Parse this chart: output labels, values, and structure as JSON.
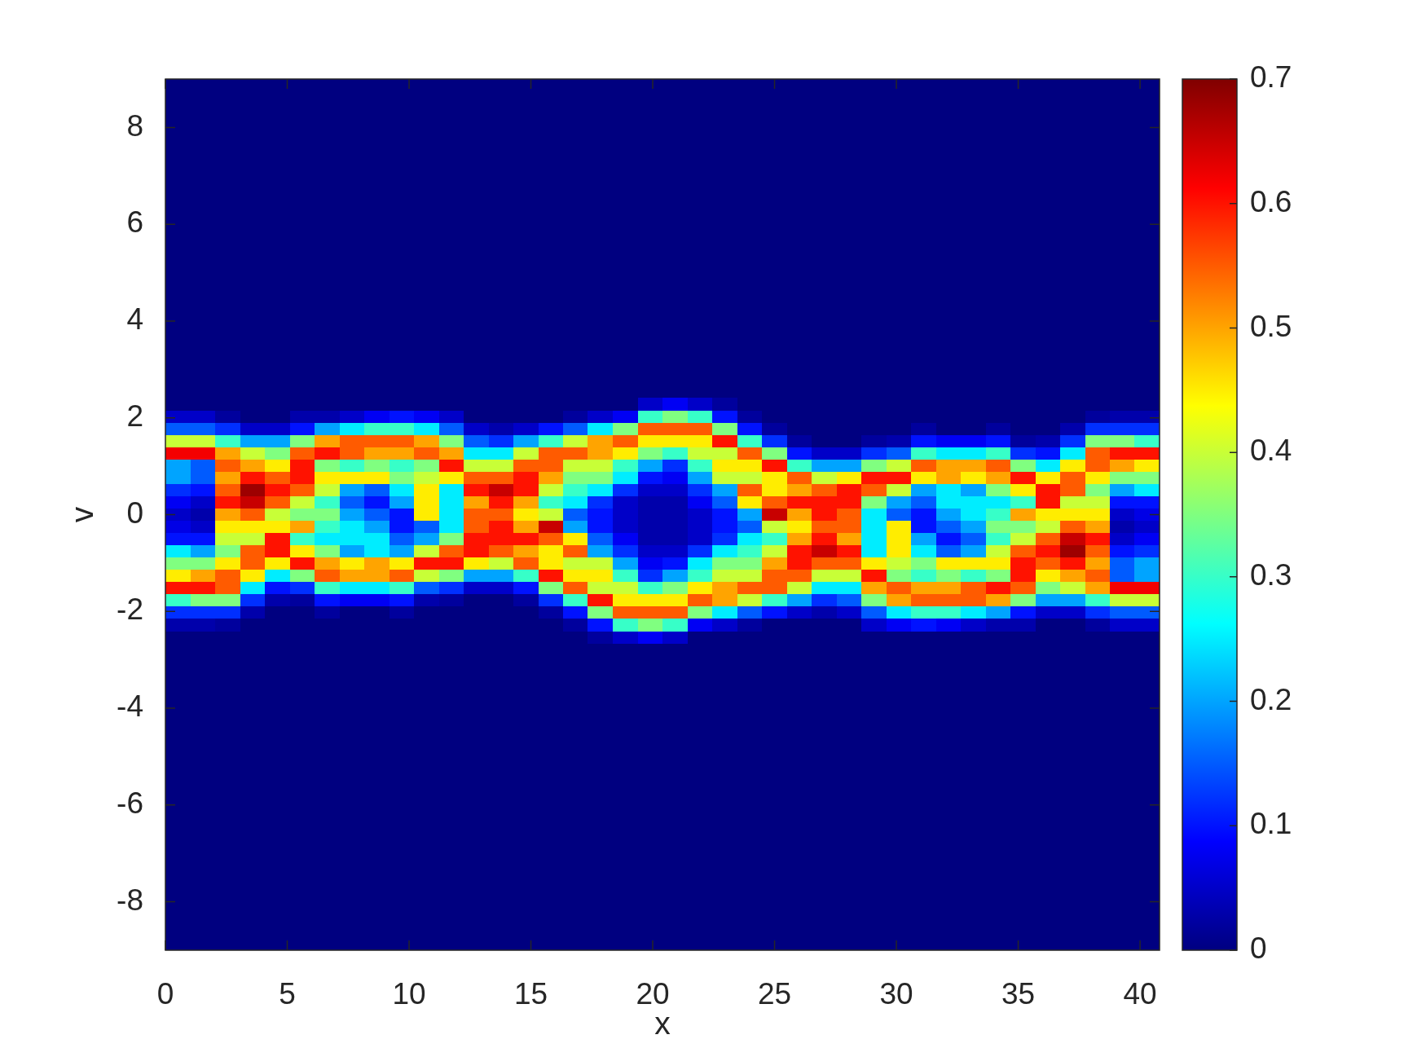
{
  "chart_data": {
    "type": "heatmap",
    "xlabel": "x",
    "ylabel": "v",
    "xlim": [
      0,
      40.8
    ],
    "ylim": [
      -9,
      9
    ],
    "xticks": [
      0,
      5,
      10,
      15,
      20,
      25,
      30,
      35,
      40
    ],
    "yticks": [
      -8,
      -6,
      -4,
      -2,
      0,
      2,
      4,
      6,
      8
    ],
    "clim": [
      0,
      0.7
    ],
    "cticks": [
      0,
      0.1,
      0.2,
      0.3,
      0.4,
      0.5,
      0.6,
      0.7
    ],
    "cells": [
      [
        0,
        0,
        0,
        0,
        0,
        0,
        0,
        0,
        0,
        0,
        0,
        0,
        0,
        0,
        0,
        0,
        0,
        0,
        0,
        0,
        0,
        0,
        0,
        0,
        0,
        0,
        0,
        0,
        0,
        0,
        0,
        0,
        0,
        0,
        0,
        0,
        0,
        0,
        0,
        0
      ],
      [
        0,
        0,
        0,
        0,
        0,
        0,
        0,
        0,
        0,
        0,
        0,
        0,
        0,
        0,
        0,
        0,
        0,
        0,
        0,
        0,
        0,
        0,
        0,
        0,
        0,
        0,
        0,
        0,
        0,
        0,
        0,
        0,
        0,
        0,
        0,
        0,
        0,
        0,
        0,
        0
      ],
      [
        0,
        0,
        0,
        0,
        0,
        0,
        0,
        0,
        0,
        0,
        0,
        0,
        0,
        0,
        0,
        0,
        0,
        0,
        0,
        0,
        0,
        0,
        0,
        0,
        0,
        0,
        0,
        0,
        0,
        0,
        0,
        0,
        0,
        0,
        0,
        0,
        0,
        0,
        0,
        0
      ],
      [
        0,
        0,
        0,
        0,
        0,
        0,
        0,
        0,
        0,
        0,
        0,
        0,
        0,
        0,
        0,
        0,
        0,
        0,
        0,
        0,
        0,
        0,
        0,
        0,
        0,
        0,
        0,
        0,
        0,
        0,
        0,
        0,
        0,
        0,
        0,
        0,
        0,
        0,
        0,
        0
      ],
      [
        0,
        0,
        0,
        0,
        0,
        0,
        0,
        0,
        0,
        0,
        0,
        0,
        0,
        0,
        0,
        0,
        0,
        0,
        0,
        0,
        0,
        0,
        0,
        0,
        0,
        0,
        0,
        0,
        0,
        0,
        0,
        0,
        0,
        0,
        0,
        0,
        0,
        0,
        0,
        0
      ],
      [
        0,
        0,
        0,
        0,
        0,
        0,
        0,
        0,
        0,
        0,
        0,
        0,
        0,
        0,
        0,
        0,
        0,
        0,
        0,
        0,
        0,
        0,
        0,
        0,
        0,
        0,
        0,
        0,
        0,
        0,
        0,
        0,
        0,
        0,
        0,
        0,
        0,
        0,
        0,
        0
      ],
      [
        0,
        0,
        0,
        0,
        0,
        0,
        0,
        0,
        0,
        0,
        0,
        0,
        0,
        0,
        0,
        0,
        0,
        0,
        0,
        0,
        0,
        0,
        0,
        0,
        0,
        0,
        0,
        0,
        0,
        0,
        0,
        0,
        0,
        0,
        0,
        0,
        0,
        0,
        0,
        0
      ],
      [
        0,
        0,
        0,
        0,
        0,
        0,
        0,
        0,
        0,
        0,
        0,
        0,
        0,
        0,
        0,
        0,
        0,
        0,
        0,
        0,
        0,
        0,
        0,
        0,
        0,
        0,
        0,
        0,
        0,
        0,
        0,
        0,
        0,
        0,
        0,
        0,
        0,
        0,
        0,
        0
      ],
      [
        0,
        0,
        0,
        0,
        0,
        0,
        0,
        0,
        0,
        0,
        0,
        0,
        0,
        0,
        0,
        0,
        0,
        0,
        0,
        0,
        0,
        0,
        0,
        0,
        0,
        0,
        0,
        0,
        0,
        0,
        0,
        0,
        0,
        0,
        0,
        0,
        0,
        0,
        0,
        0
      ],
      [
        0,
        0,
        0,
        0,
        0,
        0,
        0,
        0,
        0,
        0,
        0,
        0,
        0,
        0,
        0,
        0,
        0,
        0,
        0,
        0,
        0,
        0,
        0,
        0,
        0,
        0,
        0,
        0,
        0,
        0,
        0,
        0,
        0,
        0,
        0,
        0,
        0,
        0,
        0,
        0
      ],
      [
        0,
        0,
        0,
        0,
        0,
        0,
        0,
        0,
        0,
        0,
        0,
        0,
        0,
        0,
        0,
        0,
        0,
        0,
        0,
        0,
        0,
        0,
        0,
        0,
        0,
        0,
        0,
        0,
        0,
        0,
        0,
        0,
        0,
        0,
        0,
        0,
        0,
        0,
        0,
        0
      ],
      [
        0,
        0,
        0,
        0,
        0,
        0,
        0,
        0,
        0,
        0,
        0,
        0,
        0,
        0,
        0,
        0,
        0,
        0,
        0,
        0,
        0,
        0,
        0,
        0,
        0,
        0,
        0,
        0,
        0,
        0,
        0,
        0,
        0,
        0,
        0,
        0,
        0,
        0,
        0,
        0
      ],
      [
        0,
        0,
        0,
        0,
        0,
        0,
        0,
        0,
        0,
        0,
        0,
        0,
        0,
        0,
        0,
        0,
        0,
        0,
        0,
        0,
        0,
        0,
        0,
        0,
        0,
        0,
        0,
        0,
        0,
        0,
        0,
        0,
        0,
        0,
        0,
        0,
        0,
        0,
        0,
        0
      ],
      [
        0,
        0,
        0,
        0,
        0,
        0,
        0,
        0,
        0,
        0,
        0,
        0,
        0,
        0,
        0,
        0,
        0,
        0,
        0,
        0,
        0,
        0,
        0,
        0,
        0,
        0,
        0,
        0,
        0,
        0,
        0,
        0,
        0,
        0,
        0,
        0,
        0,
        0,
        0,
        0
      ],
      [
        0,
        0,
        0,
        0,
        0,
        0,
        0,
        0,
        0,
        0,
        0,
        0,
        0,
        0,
        0,
        0,
        0,
        0,
        0,
        0,
        0,
        0,
        0,
        0,
        0,
        0,
        0,
        0,
        0,
        0,
        0,
        0,
        0,
        0,
        0,
        0,
        0,
        0,
        0,
        0
      ],
      [
        0,
        0,
        0,
        0,
        0,
        0,
        0,
        0,
        0,
        0,
        0,
        0,
        0,
        0,
        0,
        0,
        0,
        0,
        0,
        0,
        0,
        0,
        0,
        0,
        0,
        0,
        0,
        0,
        0,
        0,
        0,
        0,
        0,
        0,
        0,
        0,
        0,
        0,
        0,
        0
      ],
      [
        0,
        0,
        0,
        0,
        0,
        0,
        0,
        0,
        0,
        0,
        0,
        0,
        0,
        0,
        0,
        0,
        0,
        0,
        0,
        0,
        0,
        0,
        0,
        0,
        0,
        0,
        0,
        0,
        0,
        0,
        0,
        0,
        0,
        0,
        0,
        0,
        0,
        0,
        0,
        0
      ],
      [
        0,
        0,
        0,
        0,
        0,
        0,
        0,
        0,
        0,
        0,
        0,
        0,
        0,
        0,
        0,
        0,
        0,
        0,
        0,
        0,
        0,
        0,
        0,
        0,
        0,
        0,
        0,
        0,
        0,
        0,
        0,
        0,
        0,
        0,
        0,
        0,
        0,
        0,
        0,
        0
      ],
      [
        0,
        0,
        0,
        0,
        0,
        0,
        0,
        0,
        0,
        0,
        0,
        0,
        0,
        0,
        0,
        0,
        0,
        0,
        0,
        0,
        0,
        0,
        0,
        0,
        0,
        0,
        0,
        0,
        0,
        0,
        0,
        0,
        0,
        0,
        0,
        0,
        0,
        0,
        0,
        0
      ],
      [
        0,
        0,
        0,
        0,
        0,
        0,
        0,
        0,
        0,
        0,
        0,
        0,
        0,
        0,
        0,
        0,
        0,
        0,
        0,
        0,
        0,
        0,
        0,
        0,
        0,
        0,
        0,
        0,
        0,
        0,
        0,
        0,
        0,
        0,
        0,
        0,
        0,
        0,
        0,
        0
      ],
      [
        0,
        0,
        0,
        0,
        0,
        0,
        0,
        0,
        0,
        0,
        0,
        0,
        0,
        0,
        0,
        0,
        0,
        0,
        0,
        0,
        0,
        0,
        0,
        0,
        0,
        0,
        0,
        0,
        0,
        0,
        0,
        0,
        0,
        0,
        0,
        0,
        0,
        0,
        0,
        0
      ],
      [
        0,
        0,
        0,
        0,
        0,
        0,
        0,
        0,
        0,
        0,
        0,
        0,
        0,
        0,
        0,
        0,
        0,
        0,
        0,
        0,
        0,
        0,
        0,
        0,
        0,
        0,
        0,
        0,
        0,
        0,
        0,
        0,
        0,
        0,
        0,
        0,
        0,
        0,
        0,
        0
      ],
      [
        0,
        0,
        0,
        0,
        0,
        0,
        0,
        0,
        0,
        0,
        0,
        0,
        0,
        0,
        0,
        0,
        0,
        0,
        0,
        0,
        0,
        0,
        0,
        0,
        0,
        0,
        0,
        0,
        0,
        0,
        0,
        0,
        0,
        0,
        0,
        0,
        0,
        0,
        0,
        0
      ],
      [
        0,
        0,
        0,
        0,
        0,
        0,
        0,
        0,
        0,
        0,
        0,
        0,
        0,
        0,
        0,
        0,
        0,
        0,
        0,
        0,
        0,
        0,
        0,
        0,
        0,
        0,
        0,
        0,
        0,
        0,
        0,
        0,
        0,
        0,
        0,
        0,
        0,
        0,
        0,
        0
      ],
      [
        0,
        0,
        0,
        0,
        0,
        0,
        0,
        0,
        0,
        0,
        0,
        0,
        0,
        0,
        0,
        0,
        0,
        0,
        0,
        0,
        0,
        0,
        0,
        0,
        0,
        0,
        0,
        0,
        0,
        0,
        0,
        0,
        0,
        0,
        0,
        0,
        0,
        0,
        0,
        0
      ],
      [
        0,
        0,
        0,
        0,
        0,
        0,
        0,
        0,
        0,
        0,
        0,
        0,
        0,
        0,
        0,
        0,
        0,
        0,
        0,
        0,
        0,
        0,
        0,
        0,
        0,
        0,
        0,
        0,
        0,
        0,
        0,
        0,
        0,
        0,
        0,
        0,
        0,
        0,
        0,
        0
      ],
      [
        0,
        0,
        0,
        0,
        0,
        0,
        0,
        0,
        0,
        0,
        0,
        0,
        0,
        0,
        0,
        0,
        0,
        0,
        0,
        0.05,
        0.08,
        0.05,
        0.02,
        0,
        0,
        0,
        0,
        0,
        0,
        0,
        0,
        0,
        0,
        0,
        0,
        0,
        0,
        0,
        0,
        0
      ],
      [
        0.05,
        0.05,
        0.02,
        0,
        0,
        0.03,
        0.03,
        0.05,
        0.08,
        0.1,
        0.08,
        0.05,
        0,
        0,
        0,
        0,
        0.02,
        0.05,
        0.08,
        0.3,
        0.35,
        0.3,
        0.1,
        0.02,
        0,
        0,
        0,
        0,
        0,
        0,
        0,
        0,
        0,
        0,
        0,
        0,
        0,
        0.02,
        0.03,
        0.03
      ],
      [
        0.15,
        0.15,
        0.12,
        0.05,
        0.05,
        0.1,
        0.2,
        0.25,
        0.3,
        0.3,
        0.25,
        0.15,
        0.05,
        0.03,
        0.05,
        0.1,
        0.15,
        0.25,
        0.35,
        0.55,
        0.55,
        0.55,
        0.35,
        0.1,
        0.02,
        0,
        0,
        0,
        0,
        0,
        0.02,
        0,
        0,
        0.02,
        0,
        0,
        0.03,
        0.12,
        0.12,
        0.12
      ],
      [
        0.4,
        0.4,
        0.3,
        0.2,
        0.2,
        0.35,
        0.5,
        0.55,
        0.55,
        0.55,
        0.5,
        0.35,
        0.15,
        0.12,
        0.2,
        0.3,
        0.4,
        0.5,
        0.55,
        0.45,
        0.45,
        0.45,
        0.6,
        0.3,
        0.12,
        0.02,
        0,
        0,
        0.02,
        0.03,
        0.1,
        0.08,
        0.08,
        0.1,
        0.02,
        0.03,
        0.12,
        0.35,
        0.35,
        0.3
      ],
      [
        0.62,
        0.62,
        0.5,
        0.4,
        0.35,
        0.55,
        0.6,
        0.55,
        0.5,
        0.5,
        0.55,
        0.5,
        0.25,
        0.25,
        0.4,
        0.55,
        0.55,
        0.5,
        0.45,
        0.35,
        0.3,
        0.4,
        0.4,
        0.55,
        0.35,
        0.1,
        0.05,
        0.05,
        0.12,
        0.15,
        0.3,
        0.25,
        0.25,
        0.3,
        0.12,
        0.1,
        0.25,
        0.55,
        0.6,
        0.6
      ],
      [
        0.2,
        0.15,
        0.55,
        0.5,
        0.45,
        0.6,
        0.35,
        0.3,
        0.35,
        0.3,
        0.35,
        0.6,
        0.4,
        0.4,
        0.55,
        0.55,
        0.4,
        0.4,
        0.3,
        0.2,
        0.12,
        0.3,
        0.45,
        0.45,
        0.6,
        0.3,
        0.2,
        0.2,
        0.35,
        0.4,
        0.55,
        0.5,
        0.5,
        0.55,
        0.35,
        0.25,
        0.45,
        0.55,
        0.5,
        0.45
      ],
      [
        0.2,
        0.15,
        0.5,
        0.6,
        0.55,
        0.6,
        0.45,
        0.45,
        0.45,
        0.35,
        0.4,
        0.45,
        0.55,
        0.55,
        0.6,
        0.5,
        0.35,
        0.35,
        0.25,
        0.1,
        0.08,
        0.2,
        0.4,
        0.4,
        0.45,
        0.55,
        0.4,
        0.45,
        0.6,
        0.6,
        0.45,
        0.5,
        0.45,
        0.5,
        0.6,
        0.45,
        0.55,
        0.45,
        0.35,
        0.35
      ],
      [
        0.12,
        0.1,
        0.55,
        0.68,
        0.6,
        0.55,
        0.4,
        0.2,
        0.15,
        0.25,
        0.45,
        0.25,
        0.6,
        0.65,
        0.6,
        0.4,
        0.3,
        0.25,
        0.12,
        0.05,
        0.05,
        0.12,
        0.2,
        0.55,
        0.45,
        0.5,
        0.55,
        0.6,
        0.55,
        0.4,
        0.2,
        0.25,
        0.2,
        0.35,
        0.45,
        0.6,
        0.55,
        0.35,
        0.2,
        0.25
      ],
      [
        0.08,
        0.05,
        0.6,
        0.65,
        0.55,
        0.4,
        0.3,
        0.15,
        0.1,
        0.2,
        0.45,
        0.25,
        0.5,
        0.6,
        0.5,
        0.3,
        0.25,
        0.12,
        0.05,
        0.03,
        0.03,
        0.08,
        0.15,
        0.45,
        0.55,
        0.6,
        0.6,
        0.6,
        0.35,
        0.2,
        0.15,
        0.25,
        0.25,
        0.25,
        0.3,
        0.6,
        0.4,
        0.4,
        0.1,
        0.1
      ],
      [
        0.05,
        0.03,
        0.5,
        0.55,
        0.4,
        0.35,
        0.35,
        0.2,
        0.15,
        0.1,
        0.45,
        0.25,
        0.55,
        0.55,
        0.45,
        0.4,
        0.15,
        0.1,
        0.05,
        0.03,
        0.03,
        0.05,
        0.1,
        0.2,
        0.65,
        0.5,
        0.6,
        0.55,
        0.25,
        0.15,
        0.1,
        0.2,
        0.25,
        0.3,
        0.5,
        0.45,
        0.45,
        0.45,
        0.05,
        0.07
      ],
      [
        0.07,
        0.05,
        0.45,
        0.45,
        0.45,
        0.5,
        0.3,
        0.25,
        0.2,
        0.1,
        0.15,
        0.25,
        0.55,
        0.6,
        0.5,
        0.65,
        0.2,
        0.1,
        0.05,
        0.03,
        0.03,
        0.05,
        0.1,
        0.15,
        0.4,
        0.45,
        0.55,
        0.55,
        0.25,
        0.45,
        0.1,
        0.15,
        0.2,
        0.35,
        0.35,
        0.4,
        0.55,
        0.5,
        0.03,
        0.05
      ],
      [
        0.1,
        0.1,
        0.4,
        0.4,
        0.6,
        0.3,
        0.25,
        0.25,
        0.25,
        0.15,
        0.2,
        0.35,
        0.6,
        0.6,
        0.6,
        0.55,
        0.45,
        0.15,
        0.08,
        0.03,
        0.03,
        0.05,
        0.12,
        0.25,
        0.3,
        0.5,
        0.6,
        0.5,
        0.25,
        0.45,
        0.2,
        0.1,
        0.15,
        0.3,
        0.4,
        0.55,
        0.65,
        0.6,
        0.05,
        0.08
      ],
      [
        0.25,
        0.2,
        0.35,
        0.55,
        0.6,
        0.45,
        0.35,
        0.2,
        0.25,
        0.2,
        0.4,
        0.55,
        0.6,
        0.55,
        0.5,
        0.45,
        0.55,
        0.2,
        0.12,
        0.05,
        0.05,
        0.12,
        0.25,
        0.3,
        0.4,
        0.6,
        0.65,
        0.6,
        0.25,
        0.45,
        0.25,
        0.15,
        0.2,
        0.4,
        0.55,
        0.6,
        0.68,
        0.55,
        0.1,
        0.12
      ],
      [
        0.35,
        0.35,
        0.45,
        0.55,
        0.45,
        0.6,
        0.5,
        0.45,
        0.5,
        0.45,
        0.6,
        0.6,
        0.45,
        0.4,
        0.55,
        0.45,
        0.4,
        0.4,
        0.2,
        0.08,
        0.1,
        0.25,
        0.35,
        0.35,
        0.5,
        0.6,
        0.55,
        0.55,
        0.45,
        0.4,
        0.35,
        0.45,
        0.45,
        0.45,
        0.6,
        0.55,
        0.6,
        0.5,
        0.15,
        0.2
      ],
      [
        0.45,
        0.5,
        0.55,
        0.45,
        0.25,
        0.35,
        0.55,
        0.5,
        0.5,
        0.55,
        0.4,
        0.35,
        0.2,
        0.2,
        0.3,
        0.6,
        0.45,
        0.45,
        0.3,
        0.12,
        0.2,
        0.3,
        0.4,
        0.4,
        0.55,
        0.55,
        0.4,
        0.4,
        0.6,
        0.35,
        0.3,
        0.35,
        0.3,
        0.35,
        0.6,
        0.45,
        0.5,
        0.55,
        0.15,
        0.2
      ],
      [
        0.6,
        0.6,
        0.55,
        0.25,
        0.1,
        0.12,
        0.3,
        0.25,
        0.25,
        0.3,
        0.15,
        0.12,
        0.05,
        0.05,
        0.1,
        0.35,
        0.55,
        0.4,
        0.4,
        0.3,
        0.35,
        0.45,
        0.5,
        0.55,
        0.55,
        0.4,
        0.25,
        0.25,
        0.5,
        0.55,
        0.5,
        0.5,
        0.55,
        0.6,
        0.55,
        0.35,
        0.4,
        0.5,
        0.62,
        0.62
      ],
      [
        0.3,
        0.35,
        0.35,
        0.12,
        0.03,
        0.02,
        0.1,
        0.08,
        0.08,
        0.1,
        0.03,
        0.02,
        0,
        0,
        0.02,
        0.12,
        0.3,
        0.6,
        0.45,
        0.45,
        0.45,
        0.55,
        0.5,
        0.4,
        0.3,
        0.2,
        0.12,
        0.15,
        0.35,
        0.5,
        0.55,
        0.55,
        0.55,
        0.5,
        0.35,
        0.2,
        0.2,
        0.3,
        0.4,
        0.4
      ],
      [
        0.12,
        0.12,
        0.12,
        0.03,
        0,
        0,
        0.02,
        0,
        0,
        0.02,
        0,
        0,
        0,
        0,
        0,
        0.02,
        0.1,
        0.35,
        0.55,
        0.55,
        0.55,
        0.35,
        0.25,
        0.15,
        0.1,
        0.05,
        0.03,
        0.05,
        0.15,
        0.25,
        0.3,
        0.3,
        0.25,
        0.2,
        0.1,
        0.05,
        0.05,
        0.12,
        0.15,
        0.15
      ],
      [
        0.03,
        0.03,
        0.02,
        0,
        0,
        0,
        0,
        0,
        0,
        0,
        0,
        0,
        0,
        0,
        0,
        0,
        0.02,
        0.1,
        0.3,
        0.35,
        0.3,
        0.08,
        0.05,
        0.02,
        0,
        0,
        0,
        0,
        0.05,
        0.08,
        0.1,
        0.08,
        0.05,
        0.03,
        0.03,
        0,
        0,
        0.02,
        0.05,
        0.05
      ],
      [
        0,
        0,
        0,
        0,
        0,
        0,
        0,
        0,
        0,
        0,
        0,
        0,
        0,
        0,
        0,
        0,
        0,
        0.02,
        0.05,
        0.08,
        0.05,
        0,
        0,
        0,
        0,
        0,
        0,
        0,
        0,
        0,
        0,
        0,
        0,
        0,
        0,
        0,
        0,
        0,
        0,
        0
      ],
      [
        0,
        0,
        0,
        0,
        0,
        0,
        0,
        0,
        0,
        0,
        0,
        0,
        0,
        0,
        0,
        0,
        0,
        0,
        0,
        0,
        0,
        0,
        0,
        0,
        0,
        0,
        0,
        0,
        0,
        0,
        0,
        0,
        0,
        0,
        0,
        0,
        0,
        0,
        0,
        0
      ],
      [
        0,
        0,
        0,
        0,
        0,
        0,
        0,
        0,
        0,
        0,
        0,
        0,
        0,
        0,
        0,
        0,
        0,
        0,
        0,
        0,
        0,
        0,
        0,
        0,
        0,
        0,
        0,
        0,
        0,
        0,
        0,
        0,
        0,
        0,
        0,
        0,
        0,
        0,
        0,
        0
      ],
      [
        0,
        0,
        0,
        0,
        0,
        0,
        0,
        0,
        0,
        0,
        0,
        0,
        0,
        0,
        0,
        0,
        0,
        0,
        0,
        0,
        0,
        0,
        0,
        0,
        0,
        0,
        0,
        0,
        0,
        0,
        0,
        0,
        0,
        0,
        0,
        0,
        0,
        0,
        0,
        0
      ],
      [
        0,
        0,
        0,
        0,
        0,
        0,
        0,
        0,
        0,
        0,
        0,
        0,
        0,
        0,
        0,
        0,
        0,
        0,
        0,
        0,
        0,
        0,
        0,
        0,
        0,
        0,
        0,
        0,
        0,
        0,
        0,
        0,
        0,
        0,
        0,
        0,
        0,
        0,
        0,
        0
      ],
      [
        0,
        0,
        0,
        0,
        0,
        0,
        0,
        0,
        0,
        0,
        0,
        0,
        0,
        0,
        0,
        0,
        0,
        0,
        0,
        0,
        0,
        0,
        0,
        0,
        0,
        0,
        0,
        0,
        0,
        0,
        0,
        0,
        0,
        0,
        0,
        0,
        0,
        0,
        0,
        0
      ],
      [
        0,
        0,
        0,
        0,
        0,
        0,
        0,
        0,
        0,
        0,
        0,
        0,
        0,
        0,
        0,
        0,
        0,
        0,
        0,
        0,
        0,
        0,
        0,
        0,
        0,
        0,
        0,
        0,
        0,
        0,
        0,
        0,
        0,
        0,
        0,
        0,
        0,
        0,
        0,
        0
      ],
      [
        0,
        0,
        0,
        0,
        0,
        0,
        0,
        0,
        0,
        0,
        0,
        0,
        0,
        0,
        0,
        0,
        0,
        0,
        0,
        0,
        0,
        0,
        0,
        0,
        0,
        0,
        0,
        0,
        0,
        0,
        0,
        0,
        0,
        0,
        0,
        0,
        0,
        0,
        0,
        0
      ],
      [
        0,
        0,
        0,
        0,
        0,
        0,
        0,
        0,
        0,
        0,
        0,
        0,
        0,
        0,
        0,
        0,
        0,
        0,
        0,
        0,
        0,
        0,
        0,
        0,
        0,
        0,
        0,
        0,
        0,
        0,
        0,
        0,
        0,
        0,
        0,
        0,
        0,
        0,
        0,
        0
      ],
      [
        0,
        0,
        0,
        0,
        0,
        0,
        0,
        0,
        0,
        0,
        0,
        0,
        0,
        0,
        0,
        0,
        0,
        0,
        0,
        0,
        0,
        0,
        0,
        0,
        0,
        0,
        0,
        0,
        0,
        0,
        0,
        0,
        0,
        0,
        0,
        0,
        0,
        0,
        0,
        0
      ],
      [
        0,
        0,
        0,
        0,
        0,
        0,
        0,
        0,
        0,
        0,
        0,
        0,
        0,
        0,
        0,
        0,
        0,
        0,
        0,
        0,
        0,
        0,
        0,
        0,
        0,
        0,
        0,
        0,
        0,
        0,
        0,
        0,
        0,
        0,
        0,
        0,
        0,
        0,
        0,
        0
      ],
      [
        0,
        0,
        0,
        0,
        0,
        0,
        0,
        0,
        0,
        0,
        0,
        0,
        0,
        0,
        0,
        0,
        0,
        0,
        0,
        0,
        0,
        0,
        0,
        0,
        0,
        0,
        0,
        0,
        0,
        0,
        0,
        0,
        0,
        0,
        0,
        0,
        0,
        0,
        0,
        0
      ],
      [
        0,
        0,
        0,
        0,
        0,
        0,
        0,
        0,
        0,
        0,
        0,
        0,
        0,
        0,
        0,
        0,
        0,
        0,
        0,
        0,
        0,
        0,
        0,
        0,
        0,
        0,
        0,
        0,
        0,
        0,
        0,
        0,
        0,
        0,
        0,
        0,
        0,
        0,
        0,
        0
      ],
      [
        0,
        0,
        0,
        0,
        0,
        0,
        0,
        0,
        0,
        0,
        0,
        0,
        0,
        0,
        0,
        0,
        0,
        0,
        0,
        0,
        0,
        0,
        0,
        0,
        0,
        0,
        0,
        0,
        0,
        0,
        0,
        0,
        0,
        0,
        0,
        0,
        0,
        0,
        0,
        0
      ],
      [
        0,
        0,
        0,
        0,
        0,
        0,
        0,
        0,
        0,
        0,
        0,
        0,
        0,
        0,
        0,
        0,
        0,
        0,
        0,
        0,
        0,
        0,
        0,
        0,
        0,
        0,
        0,
        0,
        0,
        0,
        0,
        0,
        0,
        0,
        0,
        0,
        0,
        0,
        0,
        0
      ],
      [
        0,
        0,
        0,
        0,
        0,
        0,
        0,
        0,
        0,
        0,
        0,
        0,
        0,
        0,
        0,
        0,
        0,
        0,
        0,
        0,
        0,
        0,
        0,
        0,
        0,
        0,
        0,
        0,
        0,
        0,
        0,
        0,
        0,
        0,
        0,
        0,
        0,
        0,
        0,
        0
      ],
      [
        0,
        0,
        0,
        0,
        0,
        0,
        0,
        0,
        0,
        0,
        0,
        0,
        0,
        0,
        0,
        0,
        0,
        0,
        0,
        0,
        0,
        0,
        0,
        0,
        0,
        0,
        0,
        0,
        0,
        0,
        0,
        0,
        0,
        0,
        0,
        0,
        0,
        0,
        0,
        0
      ],
      [
        0,
        0,
        0,
        0,
        0,
        0,
        0,
        0,
        0,
        0,
        0,
        0,
        0,
        0,
        0,
        0,
        0,
        0,
        0,
        0,
        0,
        0,
        0,
        0,
        0,
        0,
        0,
        0,
        0,
        0,
        0,
        0,
        0,
        0,
        0,
        0,
        0,
        0,
        0,
        0
      ],
      [
        0,
        0,
        0,
        0,
        0,
        0,
        0,
        0,
        0,
        0,
        0,
        0,
        0,
        0,
        0,
        0,
        0,
        0,
        0,
        0,
        0,
        0,
        0,
        0,
        0,
        0,
        0,
        0,
        0,
        0,
        0,
        0,
        0,
        0,
        0,
        0,
        0,
        0,
        0,
        0
      ],
      [
        0,
        0,
        0,
        0,
        0,
        0,
        0,
        0,
        0,
        0,
        0,
        0,
        0,
        0,
        0,
        0,
        0,
        0,
        0,
        0,
        0,
        0,
        0,
        0,
        0,
        0,
        0,
        0,
        0,
        0,
        0,
        0,
        0,
        0,
        0,
        0,
        0,
        0,
        0,
        0
      ],
      [
        0,
        0,
        0,
        0,
        0,
        0,
        0,
        0,
        0,
        0,
        0,
        0,
        0,
        0,
        0,
        0,
        0,
        0,
        0,
        0,
        0,
        0,
        0,
        0,
        0,
        0,
        0,
        0,
        0,
        0,
        0,
        0,
        0,
        0,
        0,
        0,
        0,
        0,
        0,
        0
      ],
      [
        0,
        0,
        0,
        0,
        0,
        0,
        0,
        0,
        0,
        0,
        0,
        0,
        0,
        0,
        0,
        0,
        0,
        0,
        0,
        0,
        0,
        0,
        0,
        0,
        0,
        0,
        0,
        0,
        0,
        0,
        0,
        0,
        0,
        0,
        0,
        0,
        0,
        0,
        0,
        0
      ],
      [
        0,
        0,
        0,
        0,
        0,
        0,
        0,
        0,
        0,
        0,
        0,
        0,
        0,
        0,
        0,
        0,
        0,
        0,
        0,
        0,
        0,
        0,
        0,
        0,
        0,
        0,
        0,
        0,
        0,
        0,
        0,
        0,
        0,
        0,
        0,
        0,
        0,
        0,
        0,
        0
      ],
      [
        0,
        0,
        0,
        0,
        0,
        0,
        0,
        0,
        0,
        0,
        0,
        0,
        0,
        0,
        0,
        0,
        0,
        0,
        0,
        0,
        0,
        0,
        0,
        0,
        0,
        0,
        0,
        0,
        0,
        0,
        0,
        0,
        0,
        0,
        0,
        0,
        0,
        0,
        0,
        0
      ],
      [
        0,
        0,
        0,
        0,
        0,
        0,
        0,
        0,
        0,
        0,
        0,
        0,
        0,
        0,
        0,
        0,
        0,
        0,
        0,
        0,
        0,
        0,
        0,
        0,
        0,
        0,
        0,
        0,
        0,
        0,
        0,
        0,
        0,
        0,
        0,
        0,
        0,
        0,
        0,
        0
      ],
      [
        0,
        0,
        0,
        0,
        0,
        0,
        0,
        0,
        0,
        0,
        0,
        0,
        0,
        0,
        0,
        0,
        0,
        0,
        0,
        0,
        0,
        0,
        0,
        0,
        0,
        0,
        0,
        0,
        0,
        0,
        0,
        0,
        0,
        0,
        0,
        0,
        0,
        0,
        0,
        0
      ]
    ]
  }
}
